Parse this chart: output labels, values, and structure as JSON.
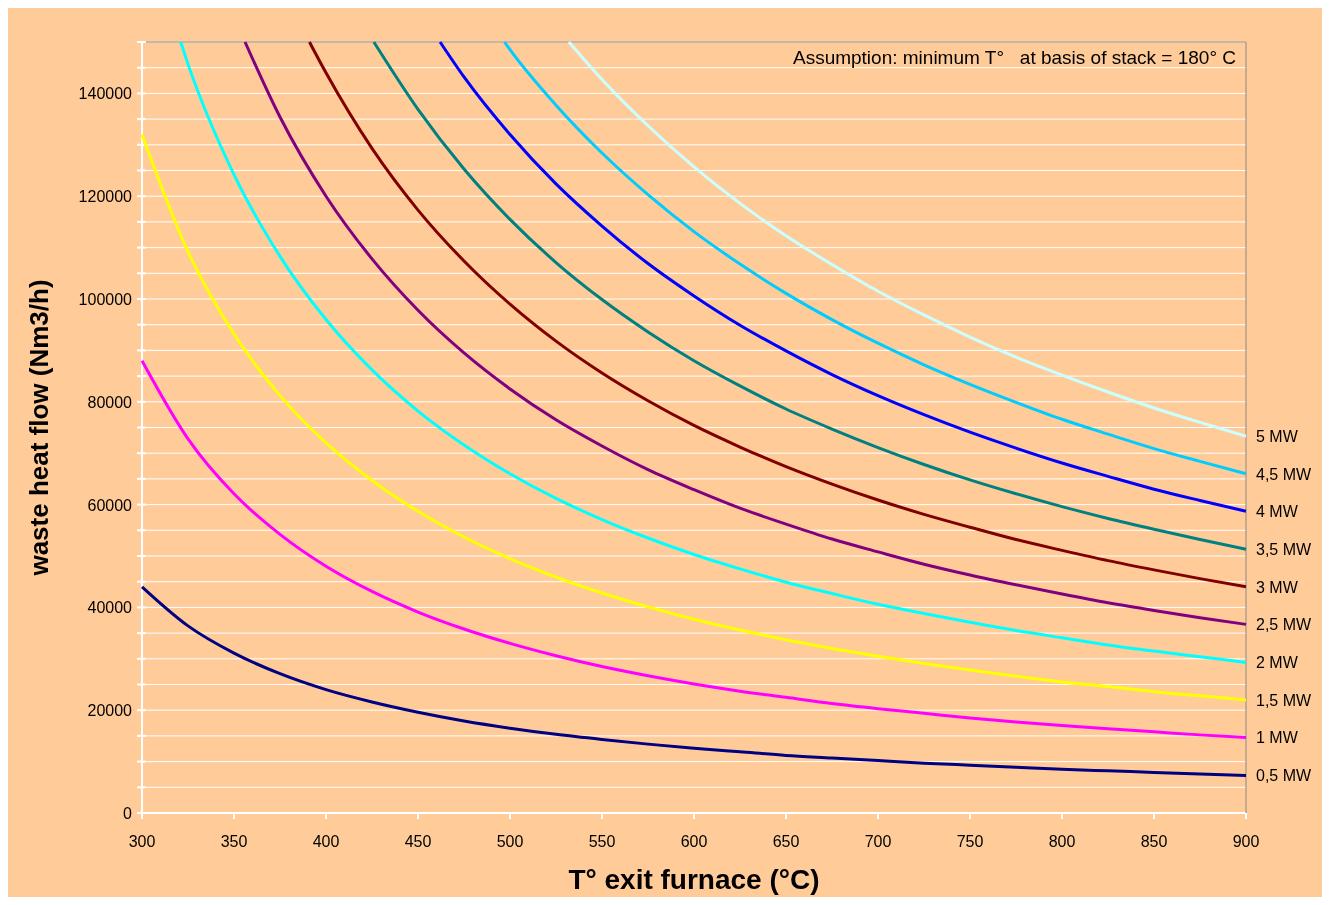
{
  "chart_data": {
    "type": "line",
    "xlabel": "T° exit furnace (°C)",
    "ylabel": "waste heat flow (Nm3/h)",
    "annotations": [
      "Assumption: minimum T°   at basis of stack = 180° C"
    ],
    "xlim": [
      300,
      900
    ],
    "xticks": [
      300,
      350,
      400,
      450,
      500,
      550,
      600,
      650,
      700,
      750,
      800,
      850,
      900
    ],
    "ylim": [
      0,
      150000
    ],
    "yticks": [
      0,
      {
        "value": 5000,
        "label": null
      },
      {
        "value": 10000,
        "label": null
      },
      {
        "value": 15000,
        "label": null
      },
      20000,
      {
        "value": 25000,
        "label": null
      },
      {
        "value": 30000,
        "label": null
      },
      {
        "value": 35000,
        "label": null
      },
      40000,
      {
        "value": 45000,
        "label": null
      },
      {
        "value": 50000,
        "label": null
      },
      {
        "value": 55000,
        "label": null
      },
      60000,
      {
        "value": 65000,
        "label": null
      },
      {
        "value": 70000,
        "label": null
      },
      {
        "value": 75000,
        "label": null
      },
      80000,
      {
        "value": 85000,
        "label": null
      },
      {
        "value": 90000,
        "label": null
      },
      {
        "value": 95000,
        "label": null
      },
      100000,
      {
        "value": 105000,
        "label": null
      },
      {
        "value": 110000,
        "label": null
      },
      {
        "value": 115000,
        "label": null
      },
      120000,
      {
        "value": 125000,
        "label": null
      },
      {
        "value": 130000,
        "label": null
      },
      {
        "value": 135000,
        "label": null
      },
      140000,
      {
        "value": 145000,
        "label": null
      },
      {
        "value": 150000,
        "label": null
      }
    ],
    "grid": "y",
    "x": [
      300,
      325,
      350,
      375,
      400,
      425,
      450,
      475,
      500,
      525,
      550,
      575,
      600,
      625,
      650,
      675,
      700,
      725,
      750,
      775,
      800,
      825,
      850,
      875,
      900
    ],
    "series": [
      {
        "name": "0,5 MW",
        "color": "#000080",
        "values": [
          44000,
          36400,
          31100,
          27100,
          24000,
          21600,
          19600,
          17900,
          16500,
          15300,
          14300,
          13400,
          12600,
          11900,
          11200,
          10700,
          10200,
          9700,
          9300,
          8900,
          8500,
          8200,
          7900,
          7600,
          7300
        ]
      },
      {
        "name": "1 MW",
        "color": "#ff00ff",
        "values": [
          88000,
          72800,
          62100,
          54200,
          48000,
          43100,
          39100,
          35800,
          33000,
          30600,
          28500,
          26700,
          25100,
          23700,
          22500,
          21300,
          20300,
          19400,
          18500,
          17700,
          17000,
          16400,
          15800,
          15200,
          14700
        ]
      },
      {
        "name": "1,5 MW",
        "color": "#ffff00",
        "values": [
          132000,
          109200,
          93200,
          81200,
          72000,
          64700,
          58700,
          53700,
          49500,
          45900,
          42800,
          40100,
          37700,
          35600,
          33700,
          32000,
          30500,
          29100,
          27800,
          26600,
          25500,
          24600,
          23600,
          22800,
          22000
        ]
      },
      {
        "name": "2 MW",
        "color": "#00ffff",
        "x": [
          321,
          325,
          350,
          375,
          400,
          425,
          450,
          475,
          500,
          525,
          550,
          575,
          600,
          625,
          650,
          675,
          700,
          725,
          750,
          775,
          800,
          825,
          850,
          875,
          900
        ],
        "values": [
          150000,
          145700,
          124200,
          108300,
          96000,
          86200,
          78200,
          71600,
          66000,
          61200,
          57100,
          53500,
          50300,
          47500,
          44900,
          42700,
          40600,
          38800,
          37100,
          35500,
          34100,
          32700,
          31500,
          30400,
          29300
        ]
      },
      {
        "name": "2,5 MW",
        "color": "#800080",
        "x": [
          356,
          375,
          400,
          425,
          450,
          475,
          500,
          525,
          550,
          575,
          600,
          625,
          650,
          675,
          700,
          725,
          750,
          775,
          800,
          825,
          850,
          875,
          900
        ],
        "values": [
          150000,
          135400,
          120000,
          107800,
          97800,
          89500,
          82500,
          76500,
          71400,
          66800,
          62900,
          59300,
          56200,
          53300,
          50800,
          48400,
          46300,
          44400,
          42600,
          40900,
          39400,
          38000,
          36700
        ]
      },
      {
        "name": "3 MW",
        "color": "#800000",
        "x": [
          391,
          400,
          425,
          450,
          475,
          500,
          525,
          550,
          575,
          600,
          625,
          650,
          675,
          700,
          725,
          750,
          775,
          800,
          825,
          850,
          875,
          900
        ],
        "values": [
          150000,
          144000,
          129300,
          117300,
          107400,
          99000,
          91800,
          85600,
          80200,
          75400,
          71200,
          67400,
          64000,
          60900,
          58100,
          55600,
          53200,
          51100,
          49100,
          47300,
          45600,
          44000
        ]
      },
      {
        "name": "3,5 MW",
        "color": "#008080",
        "x": [
          426,
          450,
          475,
          500,
          525,
          550,
          575,
          600,
          625,
          650,
          675,
          700,
          725,
          750,
          775,
          800,
          825,
          850,
          875,
          900
        ],
        "values": [
          150000,
          136900,
          125300,
          115500,
          107100,
          99900,
          93600,
          88000,
          83100,
          78600,
          74700,
          71100,
          67800,
          64800,
          62100,
          59600,
          57300,
          55200,
          53200,
          51300
        ]
      },
      {
        "name": "4 MW",
        "color": "#0000ff",
        "x": [
          462,
          475,
          500,
          525,
          550,
          575,
          600,
          625,
          650,
          675,
          700,
          725,
          750,
          775,
          800,
          825,
          850,
          875,
          900
        ],
        "values": [
          150000,
          143200,
          132000,
          122400,
          114200,
          106900,
          100600,
          94900,
          89900,
          85300,
          81200,
          77500,
          74100,
          71000,
          68100,
          65500,
          63000,
          60800,
          58700
        ]
      },
      {
        "name": "4,5 MW",
        "color": "#00ccff",
        "x": [
          497,
          500,
          525,
          550,
          575,
          600,
          625,
          650,
          675,
          700,
          725,
          750,
          775,
          800,
          825,
          850,
          875,
          900
        ],
        "values": [
          150000,
          148500,
          137700,
          128400,
          120300,
          113100,
          106800,
          101100,
          96000,
          91400,
          87200,
          83400,
          79900,
          76600,
          73700,
          70900,
          68400,
          66000
        ]
      },
      {
        "name": "5 MW",
        "color": "#ccffff",
        "x": [
          532,
          550,
          575,
          600,
          625,
          650,
          675,
          700,
          725,
          750,
          775,
          800,
          825,
          850,
          875,
          900
        ],
        "values": [
          150000,
          142700,
          133700,
          125700,
          118600,
          112300,
          106700,
          101500,
          96900,
          92600,
          88700,
          85200,
          81900,
          78800,
          76000,
          73300
        ]
      }
    ]
  }
}
